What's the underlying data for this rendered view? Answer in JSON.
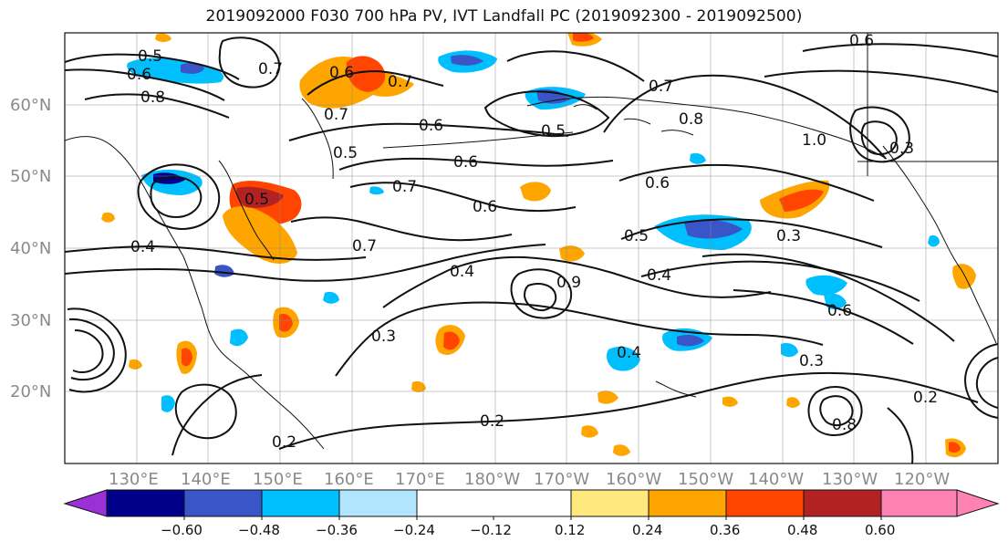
{
  "title": "2019092000 F030 700 hPa PV, IVT Landfall PC (2019092300 - 2019092500)",
  "map": {
    "latitude_labels": [
      "60°N",
      "50°N",
      "40°N",
      "30°N",
      "20°N"
    ],
    "longitude_labels": [
      "130°E",
      "140°E",
      "150°E",
      "160°E",
      "170°E",
      "180°W",
      "170°W",
      "160°W",
      "150°W",
      "140°W",
      "130°W",
      "120°W"
    ],
    "contour_labels": [
      "0.5",
      "0.6",
      "0.8",
      "0.7",
      "0.6",
      "0.7",
      "0.6",
      "0.7",
      "0.5",
      "0.6",
      "0.6",
      "0.8",
      "0.7",
      "0.6",
      "0.5",
      "0.7",
      "0.6",
      "0.7",
      "0.5",
      "0.4",
      "0.9",
      "0.4",
      "0.3",
      "0.4",
      "0.6",
      "0.3",
      "0.4",
      "0.2",
      "0.3",
      "0.2",
      "0.2",
      "0.8",
      "0.3",
      "1.0",
      "0.5"
    ],
    "features": {
      "coastlines": "coastline",
      "grid": true
    },
    "colors": {
      "purple": "#9b30d9",
      "navy": "#00008b",
      "blue": "#3a55c8",
      "deep_sky_blue": "#00bfff",
      "light_blue": "#b2e6ff",
      "white": "#ffffff",
      "light_yellow": "#ffe97f",
      "orange": "#ffa500",
      "red_orange": "#ff4500",
      "firebrick": "#b22222",
      "pink": "#ff82b4",
      "grid": "#8a8a8a"
    }
  },
  "colorbar": {
    "ticks": [
      "−0.60",
      "−0.48",
      "−0.36",
      "−0.24",
      "−0.12",
      "0.12",
      "0.24",
      "0.36",
      "0.48",
      "0.60"
    ],
    "bins": [
      "<-0.60",
      "-0.60 to -0.48",
      "-0.48 to -0.36",
      "-0.36 to -0.24",
      "-0.24 to -0.12",
      "-0.12 to 0.12",
      "0.12 to 0.24",
      "0.24 to 0.36",
      "0.36 to 0.48",
      "0.48 to 0.60",
      ">0.60"
    ]
  }
}
